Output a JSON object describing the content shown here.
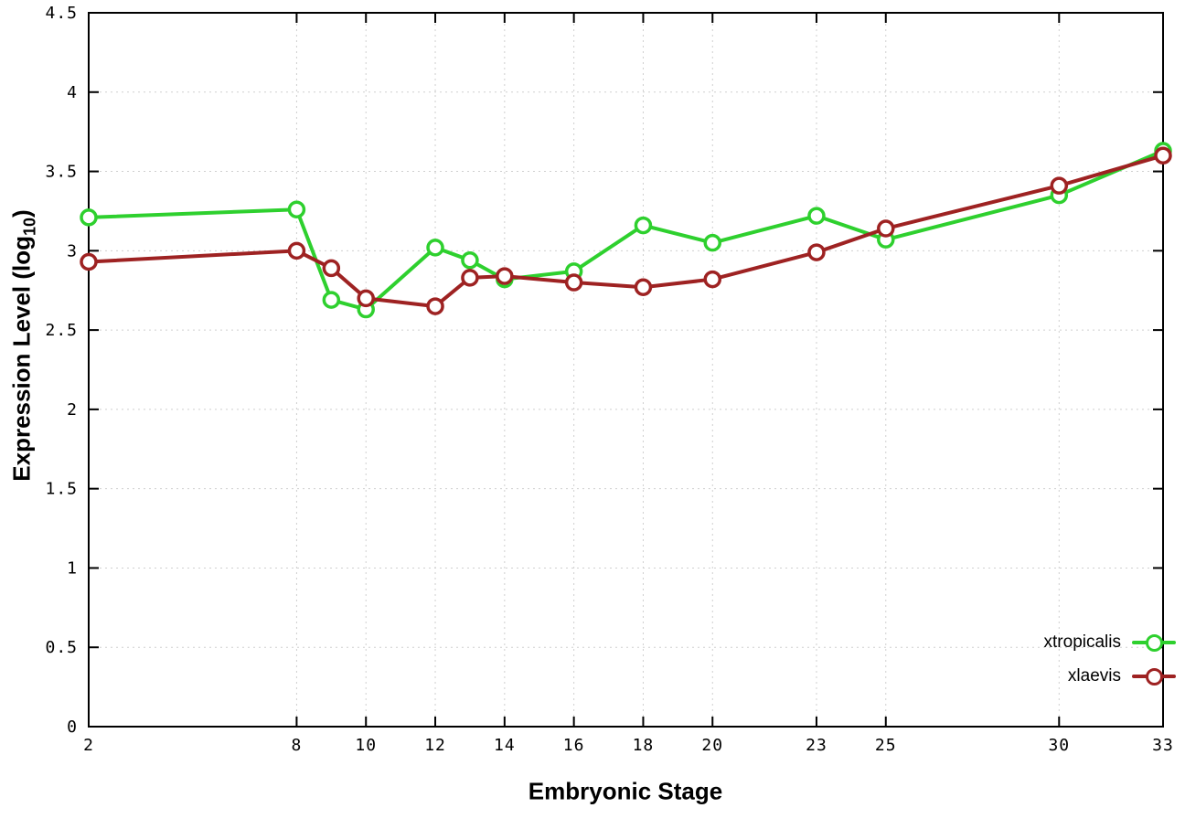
{
  "chart_data": {
    "type": "line",
    "title": "",
    "xlabel": "Embryonic Stage",
    "ylabel": "Expression Level (log10)",
    "ylabel_parts": {
      "main": "Expression Level (log",
      "sub": "10",
      "close": ")"
    },
    "xlim": [
      2,
      33
    ],
    "ylim": [
      0,
      4.5
    ],
    "grid": true,
    "legend_position": "bottom-right",
    "x": [
      2,
      8,
      9,
      10,
      12,
      13,
      14,
      16,
      18,
      20,
      23,
      25,
      30,
      33
    ],
    "xticks": [
      2,
      8,
      10,
      12,
      14,
      16,
      18,
      20,
      23,
      25,
      30,
      33
    ],
    "xticklabels": [
      "2",
      "8",
      "10",
      "12",
      "14",
      "16",
      "18",
      "20",
      "23",
      "25",
      "30",
      "33"
    ],
    "yticks": [
      0,
      0.5,
      1,
      1.5,
      2,
      2.5,
      3,
      3.5,
      4,
      4.5
    ],
    "yticklabels": [
      "0",
      "0.5",
      "1",
      "1.5",
      "2",
      "2.5",
      "3",
      "3.5",
      "4",
      "4.5"
    ],
    "series": [
      {
        "name": "xtropicalis",
        "color": "#2ed02e",
        "values": [
          3.21,
          3.26,
          2.69,
          2.63,
          3.02,
          2.94,
          2.82,
          2.87,
          3.16,
          3.05,
          3.22,
          3.07,
          3.35,
          3.63
        ]
      },
      {
        "name": "xlaevis",
        "color": "#9e2222",
        "values": [
          2.93,
          3.0,
          2.89,
          2.7,
          2.65,
          2.83,
          2.84,
          2.8,
          2.77,
          2.82,
          2.99,
          3.14,
          3.41,
          3.6
        ]
      }
    ]
  }
}
